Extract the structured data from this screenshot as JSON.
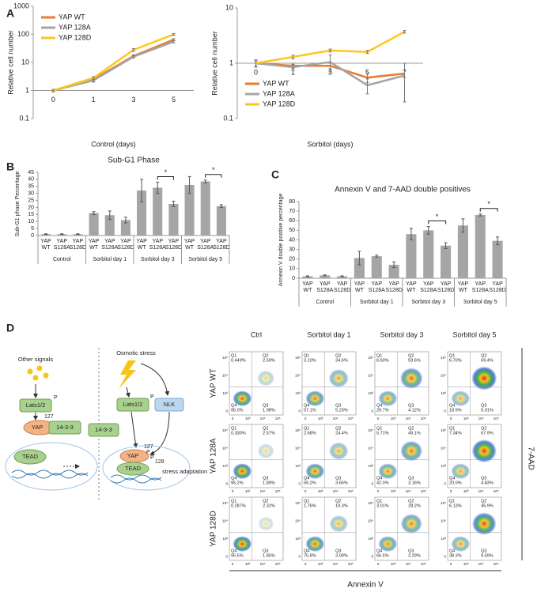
{
  "chart_data": [
    {
      "type": "line",
      "label": "A",
      "x_label": "Control (days)",
      "y_label": "Relative cell number",
      "categories": [
        "0",
        "1",
        "3",
        "5"
      ],
      "log_y": true,
      "ylim": [
        0.1,
        1000
      ],
      "yticks": [
        0.1,
        1,
        10,
        100,
        1000
      ],
      "x_axis_crosses": 1,
      "legend": "top-left",
      "series": [
        {
          "name": "YAP WT",
          "color": "#E97A2E",
          "values": [
            1,
            2.5,
            17,
            65
          ],
          "errors": [
            0.1,
            0.3,
            1.5,
            5
          ]
        },
        {
          "name": "YAP 128A",
          "color": "#A5A5A5",
          "values": [
            1,
            2.3,
            16,
            55
          ],
          "errors": [
            0.1,
            0.3,
            1.5,
            5
          ]
        },
        {
          "name": "YAP 128D",
          "color": "#FFC61A",
          "values": [
            1,
            2.8,
            28,
            100
          ],
          "errors": [
            0.1,
            0.3,
            3,
            8
          ]
        }
      ]
    },
    {
      "type": "line",
      "x_label": "Sorbitol (days)",
      "y_label": "Relative cell number",
      "categories": [
        "0",
        "1",
        "3",
        "5",
        "7"
      ],
      "log_y": true,
      "ylim": [
        0.1,
        10
      ],
      "yticks": [
        0.1,
        1,
        10
      ],
      "x_axis_crosses": 1,
      "legend": "bottom-left",
      "series": [
        {
          "name": "YAP WT",
          "color": "#E97A2E",
          "values": [
            1,
            0.9,
            0.9,
            0.55,
            0.65
          ],
          "errors": [
            0.1,
            0.1,
            0.1,
            0.1,
            0.1
          ]
        },
        {
          "name": "YAP 128A",
          "color": "#A5A5A5",
          "values": [
            1,
            0.85,
            1.05,
            0.4,
            0.6
          ],
          "errors": [
            0.15,
            0.1,
            0.35,
            0.12,
            0.4
          ]
        },
        {
          "name": "YAP 128D",
          "color": "#FFC61A",
          "values": [
            1,
            1.3,
            1.7,
            1.6,
            3.7
          ],
          "errors": [
            0.1,
            0.1,
            0.1,
            0.1,
            0.2
          ]
        }
      ]
    },
    {
      "type": "bar",
      "label": "B",
      "title": "Sub-G1 Phase",
      "y_label": "Sub-G1 phase Percentage",
      "categories": [
        [
          "YAP",
          "WT"
        ],
        [
          "YAP",
          "S128A"
        ],
        [
          "YAP",
          "S128D"
        ],
        [
          "YAP",
          "WT"
        ],
        [
          "YAP",
          "S128A"
        ],
        [
          "YAP",
          "S128D"
        ],
        [
          "YAP",
          "WT"
        ],
        [
          "YAP",
          "S128A"
        ],
        [
          "YAP",
          "S128D"
        ],
        [
          "YAP",
          "WT"
        ],
        [
          "YAP",
          "S128A"
        ],
        [
          "YAP",
          "S128D"
        ]
      ],
      "groups": [
        "Control",
        "Sorbitol day 1",
        "Sorbitol day 3",
        "Sorbitol day 5"
      ],
      "values": [
        1,
        1,
        1,
        16,
        14.5,
        11,
        32,
        34,
        22.5,
        36,
        38.5,
        21
      ],
      "errors": [
        0.3,
        0.3,
        0.3,
        1,
        3,
        2,
        8,
        4,
        2,
        6,
        1,
        1
      ],
      "color": "#A5A5A5",
      "ylim": [
        0,
        45
      ],
      "yticks": [
        0,
        5,
        10,
        15,
        20,
        25,
        30,
        35,
        40,
        45
      ],
      "significance": [
        "*",
        "*"
      ]
    },
    {
      "type": "bar",
      "label": "C",
      "title": "Annexin V and 7-AAD double positives",
      "y_label": "Annexin V double positive percentage",
      "categories": [
        [
          "YAP",
          "WT"
        ],
        [
          "YAP",
          "S128A"
        ],
        [
          "YAP",
          "S128D"
        ],
        [
          "YAP",
          "WT"
        ],
        [
          "YAP",
          "S128A"
        ],
        [
          "YAP",
          "S128D"
        ],
        [
          "YAP",
          "WT"
        ],
        [
          "YAP",
          "S128A"
        ],
        [
          "YAP",
          "S128D"
        ],
        [
          "YAP",
          "WT"
        ],
        [
          "YAP",
          "S128A"
        ],
        [
          "YAP",
          "S128D"
        ]
      ],
      "groups": [
        "Control",
        "Sorbitol day 1",
        "Sorbitol day 3",
        "Sorbitol day 5"
      ],
      "values": [
        2,
        3,
        2,
        21,
        23,
        14,
        46,
        50,
        34,
        55,
        66,
        39
      ],
      "errors": [
        0.5,
        0.5,
        0.5,
        7,
        1,
        3,
        6,
        4,
        3,
        7,
        1,
        4
      ],
      "color": "#A5A5A5",
      "ylim": [
        0,
        80
      ],
      "yticks": [
        0,
        10,
        20,
        30,
        40,
        50,
        60,
        70,
        80
      ],
      "significance": [
        "*",
        "*"
      ]
    }
  ],
  "panel_d": {
    "label": "D",
    "diagram": {
      "other_signals": "Other signals",
      "lats_left": "Lats1/2",
      "p_left": "P",
      "site_127_left": "127",
      "yap_left": "YAP",
      "complex_left": "14-3-3",
      "tead_left": "TEAD",
      "osmotic_stress": "Osmotic stress",
      "lats_right": "Lats1/2",
      "p_right": "P",
      "nlk": "NLK",
      "complex_right": "14-3-3",
      "site_127_right": "127",
      "yap_right": "YAP",
      "p_yap_1": "P",
      "p_yap_2": "P",
      "site_128": "128",
      "tead_right": "TEAD",
      "outcome": "stress adaptation"
    },
    "flow": {
      "columns": [
        "Ctrl",
        "Sorbitol day 1",
        "Sorbitol day 3",
        "Sorbitol day 5"
      ],
      "rows": [
        "YAP WT",
        "YAP 128A",
        "YAP 128D"
      ],
      "quadrant_names": [
        "Q1",
        "Q2",
        "Q3",
        "Q4"
      ],
      "axis_ticks": [
        "0",
        "10³",
        "10⁴",
        "10⁵"
      ],
      "x_label": "Annexin V",
      "y_label": "7-AAD",
      "plots": [
        [
          {
            "q1": "0.449%",
            "q2": "2.59%",
            "q3": "1.98%",
            "q4": "95.0%"
          },
          {
            "q1": "3.10%",
            "q2": "34.6%",
            "q3": "5.23%",
            "q4": "57.1%"
          },
          {
            "q1": "6.60%",
            "q2": "59.6%",
            "q3": "4.12%",
            "q4": "29.7%"
          },
          {
            "q1": "6.70%",
            "q2": "69.4%",
            "q3": "5.01%",
            "q4": "18.9%"
          }
        ],
        [
          {
            "q1": "0.330%",
            "q2": "2.57%",
            "q3": "1.89%",
            "q4": "95.2%"
          },
          {
            "q1": "2.68%",
            "q2": "24.4%",
            "q3": "3.65%",
            "q4": "69.2%"
          },
          {
            "q1": "5.71%",
            "q2": "49.1%",
            "q3": "3.16%",
            "q4": "42.0%"
          },
          {
            "q1": "7.34%",
            "q2": "67.9%",
            "q3": "4.83%",
            "q4": "20.0%"
          }
        ],
        [
          {
            "q1": "0.287%",
            "q2": "2.32%",
            "q3": "1.85%",
            "q4": "95.5%"
          },
          {
            "q1": "1.76%",
            "q2": "19.3%",
            "q3": "3.09%",
            "q4": "75.8%"
          },
          {
            "q1": "3.01%",
            "q2": "28.2%",
            "q3": "2.29%",
            "q4": "66.5%"
          },
          {
            "q1": "6.13%",
            "q2": "45.9%",
            "q3": "9.59%",
            "q4": "38.3%"
          }
        ]
      ]
    }
  }
}
